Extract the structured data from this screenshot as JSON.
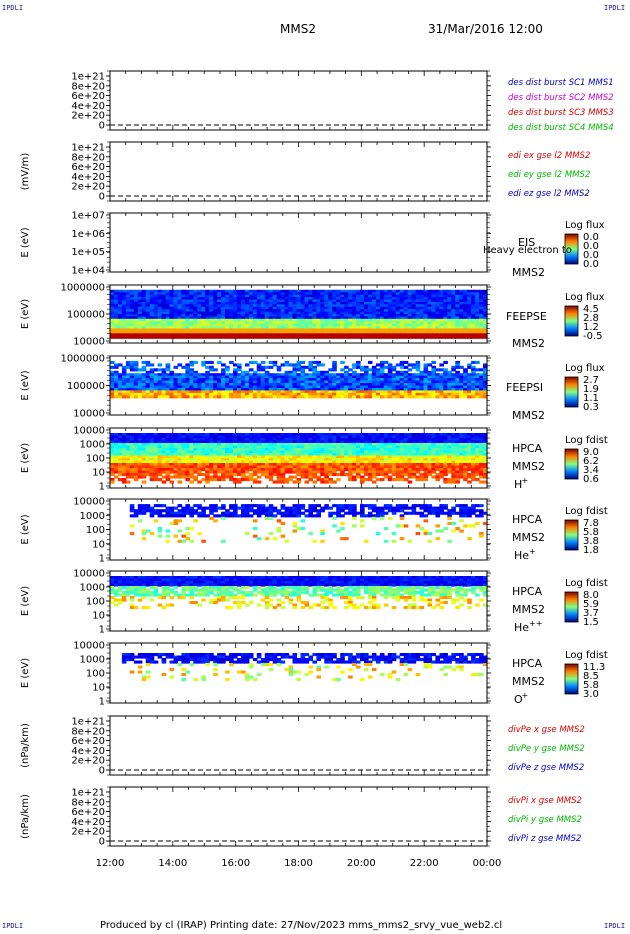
{
  "corner_label": "IPDLI",
  "header": {
    "spacecraft": "MMS2",
    "datetime": "31/Mar/2016 12:00"
  },
  "footer": "Produced by cl (IRAP)   Printing date: 27/Nov/2023   mms_mms2_srvy_vue_web2.cl",
  "x_axis": {
    "ticks": [
      "12:00",
      "14:00",
      "16:00",
      "18:00",
      "20:00",
      "22:00",
      "00:00"
    ]
  },
  "colors": {
    "red": "#dd0000",
    "magenta": "#cc00cc",
    "green": "#00bb00",
    "blue": "#0000cc"
  },
  "chart_data": [
    {
      "type": "line",
      "ylabel": "",
      "yticks": [
        "1e+21",
        "8e+20",
        "6e+20",
        "4e+20",
        "2e+20",
        "0"
      ],
      "legend": [
        {
          "text": "des dist burst SC1 MMS1",
          "color": "#0000cc"
        },
        {
          "text": "des dist burst SC2 MMS2",
          "color": "#cc00cc"
        },
        {
          "text": "des dist burst SC3 MMS3",
          "color": "#dd0000"
        },
        {
          "text": "des dist burst SC4 MMS4",
          "color": "#00bb00"
        }
      ],
      "values": []
    },
    {
      "type": "line",
      "ylabel": "(mV/m)",
      "yticks": [
        "1e+21",
        "8e+20",
        "6e+20",
        "4e+20",
        "2e+20",
        "0"
      ],
      "legend": [
        {
          "text": "edi ex gse l2 MMS2",
          "color": "#dd0000"
        },
        {
          "text": "edi ey gse l2 MMS2",
          "color": "#00bb00"
        },
        {
          "text": "edi ez gse l2 MMS2",
          "color": "#0000cc"
        }
      ],
      "values": []
    },
    {
      "type": "heatmap",
      "ylabel": "E (eV)",
      "yticks": [
        "1e+07",
        "1e+06",
        "1e+05",
        "1e+04"
      ],
      "instrument": "EIS",
      "sc": "MMS2",
      "extra_label": "Heavy electron to",
      "cbar_title": "Log flux",
      "cbar_ticks": [
        "0.0",
        "0.0",
        "0.0",
        "0.0"
      ]
    },
    {
      "type": "heatmap",
      "ylabel": "E (eV)",
      "yticks": [
        "1000000",
        "100000",
        "10000"
      ],
      "instrument": "FEEPSE",
      "sc": "MMS2",
      "cbar_title": "Log flux",
      "cbar_ticks": [
        "4.5",
        "2.8",
        "1.2",
        "-0.5"
      ]
    },
    {
      "type": "heatmap",
      "ylabel": "E (eV)",
      "yticks": [
        "1000000",
        "100000",
        "10000"
      ],
      "instrument": "FEEPSI",
      "sc": "MMS2",
      "cbar_title": "Log flux",
      "cbar_ticks": [
        "2.7",
        "1.9",
        "1.1",
        "0.3"
      ]
    },
    {
      "type": "heatmap",
      "ylabel": "E (eV)",
      "yticks": [
        "10000",
        "1000",
        "100",
        "10",
        "1"
      ],
      "instrument": "HPCA",
      "sc": "MMS2",
      "species": "H",
      "charge": "+",
      "cbar_title": "Log fdist",
      "cbar_ticks": [
        "9.0",
        "6.2",
        "3.4",
        "0.6"
      ]
    },
    {
      "type": "heatmap",
      "ylabel": "E (eV)",
      "yticks": [
        "10000",
        "1000",
        "100",
        "10",
        "1"
      ],
      "instrument": "HPCA",
      "sc": "MMS2",
      "species": "He",
      "charge": "+",
      "cbar_title": "Log fdist",
      "cbar_ticks": [
        "7.8",
        "5.8",
        "3.8",
        "1.8"
      ]
    },
    {
      "type": "heatmap",
      "ylabel": "E (eV)",
      "yticks": [
        "10000",
        "1000",
        "100",
        "10",
        "1"
      ],
      "instrument": "HPCA",
      "sc": "MMS2",
      "species": "He",
      "charge": "++",
      "cbar_title": "Log fdist",
      "cbar_ticks": [
        "8.0",
        "5.9",
        "3.7",
        "1.5"
      ]
    },
    {
      "type": "heatmap",
      "ylabel": "E (eV)",
      "yticks": [
        "10000",
        "1000",
        "100",
        "10",
        "1"
      ],
      "instrument": "HPCA",
      "sc": "MMS2",
      "species": "O",
      "charge": "+",
      "cbar_title": "Log fdist",
      "cbar_ticks": [
        "11.3",
        "8.5",
        "5.8",
        "3.0"
      ]
    },
    {
      "type": "line",
      "ylabel": "(nPa/km)",
      "yticks": [
        "1e+21",
        "8e+20",
        "6e+20",
        "4e+20",
        "2e+20",
        "0"
      ],
      "legend": [
        {
          "text": "divPe x gse MMS2",
          "color": "#dd0000"
        },
        {
          "text": "divPe y gse MMS2",
          "color": "#00bb00"
        },
        {
          "text": "divPe z gse MMS2",
          "color": "#0000cc"
        }
      ],
      "values": []
    },
    {
      "type": "line",
      "ylabel": "(nPa/km)",
      "yticks": [
        "1e+21",
        "8e+20",
        "6e+20",
        "4e+20",
        "2e+20",
        "0"
      ],
      "legend": [
        {
          "text": "divPi x gse MMS2",
          "color": "#dd0000"
        },
        {
          "text": "divPi y gse MMS2",
          "color": "#00bb00"
        },
        {
          "text": "divPi z gse MMS2",
          "color": "#0000cc"
        }
      ],
      "values": []
    }
  ]
}
